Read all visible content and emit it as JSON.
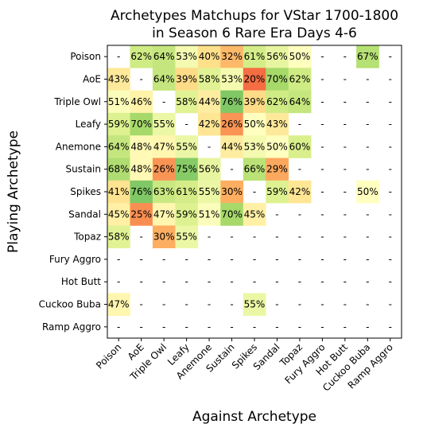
{
  "chart_data": {
    "type": "heatmap",
    "title": "Archetypes Matchups for VStar 1700-1800\nin Season 6 Rare Era Days 4-6",
    "xlabel": "Against Archetype",
    "ylabel": "Playing Archetype",
    "rows": [
      "Poison",
      "AoE",
      "Triple Owl",
      "Leafy",
      "Anemone",
      "Sustain",
      "Spikes",
      "Sandal",
      "Topaz",
      "Fury Aggro",
      "Hot Butt",
      "Cuckoo Buba",
      "Ramp Aggro"
    ],
    "columns": [
      "Poison",
      "AoE",
      "Triple Owl",
      "Leafy",
      "Anemone",
      "Sustain",
      "Spikes",
      "Sandal",
      "Topaz",
      "Fury Aggro",
      "Hot Butt",
      "Cuckoo Buba",
      "Ramp Aggro"
    ],
    "missing_label": "-",
    "values": [
      [
        null,
        62,
        64,
        53,
        40,
        32,
        61,
        56,
        50,
        null,
        null,
        67,
        null
      ],
      [
        43,
        null,
        64,
        39,
        58,
        53,
        20,
        70,
        62,
        null,
        null,
        null,
        null
      ],
      [
        51,
        46,
        null,
        58,
        44,
        76,
        39,
        62,
        64,
        null,
        null,
        null,
        null
      ],
      [
        59,
        70,
        55,
        null,
        42,
        26,
        50,
        43,
        null,
        null,
        null,
        null,
        null
      ],
      [
        64,
        48,
        47,
        55,
        null,
        44,
        53,
        50,
        60,
        null,
        null,
        null,
        null
      ],
      [
        68,
        48,
        26,
        75,
        56,
        null,
        66,
        29,
        null,
        null,
        null,
        null,
        null
      ],
      [
        41,
        76,
        63,
        61,
        55,
        30,
        null,
        59,
        42,
        null,
        null,
        50,
        null
      ],
      [
        45,
        25,
        47,
        59,
        51,
        70,
        45,
        null,
        null,
        null,
        null,
        null,
        null
      ],
      [
        58,
        null,
        30,
        55,
        null,
        null,
        null,
        null,
        null,
        null,
        null,
        null,
        null
      ],
      [
        null,
        null,
        null,
        null,
        null,
        null,
        null,
        null,
        null,
        null,
        null,
        null,
        null
      ],
      [
        null,
        null,
        null,
        null,
        null,
        null,
        null,
        null,
        null,
        null,
        null,
        null,
        null
      ],
      [
        47,
        null,
        null,
        null,
        null,
        null,
        55,
        null,
        null,
        null,
        null,
        null,
        null
      ],
      [
        null,
        null,
        null,
        null,
        null,
        null,
        null,
        null,
        null,
        null,
        null,
        null,
        null
      ]
    ],
    "value_suffix": "%",
    "colormap": "RdYlGn",
    "vmin": 0,
    "vmax": 100,
    "grid": false
  }
}
